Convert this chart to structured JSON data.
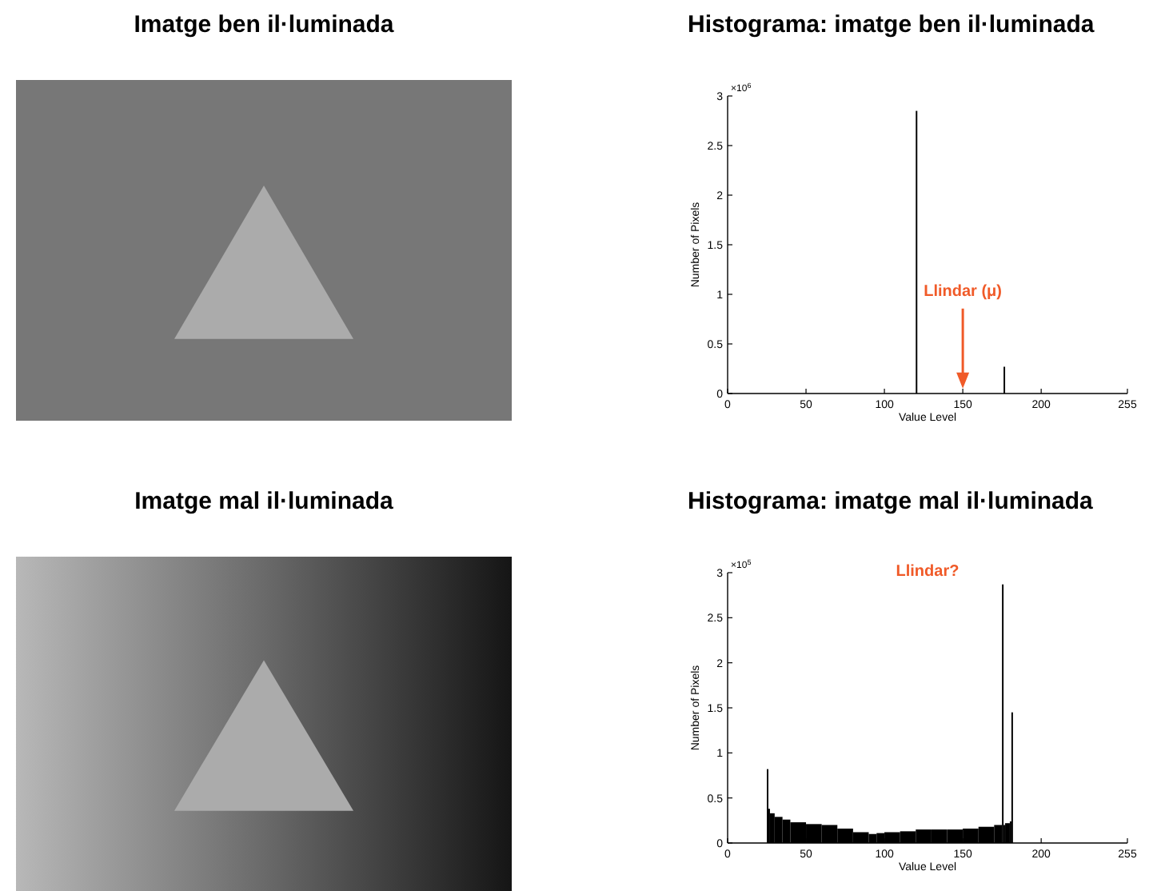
{
  "chart_data": [
    {
      "type": "other",
      "title": "Imatge ben il·luminada"
    },
    {
      "type": "histogram",
      "title": "Histograma: imatge ben il·luminada",
      "xlabel": "Value Level",
      "ylabel": "Number of Pixels",
      "color": "#000000",
      "bins": [
        120,
        121,
        176,
        177
      ],
      "values": [
        2.85,
        0,
        0.27
      ],
      "xlim": [
        0,
        255
      ],
      "xticks": [
        0,
        50,
        100,
        150,
        200,
        255
      ],
      "ylim": [
        0,
        3
      ],
      "yticks": [
        0,
        0.5,
        1,
        1.5,
        2,
        2.5,
        3
      ],
      "annotations": [
        "×10$^{6}$",
        {
          "text": "Llindar (μ)",
          "x": 150,
          "y": 0.05
        }
      ]
    },
    {
      "type": "other",
      "title": "Imatge mal il·luminada"
    },
    {
      "type": "histogram",
      "title": "Histograma: imatge mal il·luminada",
      "xlabel": "Value Level",
      "ylabel": "Number of Pixels",
      "color": "#000000",
      "bins": [
        25,
        26,
        27,
        30,
        35,
        40,
        50,
        60,
        70,
        80,
        90,
        95,
        100,
        110,
        120,
        130,
        140,
        150,
        160,
        170,
        175,
        176,
        177,
        180,
        181,
        182
      ],
      "values": [
        0.82,
        0.38,
        0.33,
        0.29,
        0.26,
        0.23,
        0.21,
        0.2,
        0.16,
        0.12,
        0.1,
        0.11,
        0.12,
        0.13,
        0.15,
        0.15,
        0.15,
        0.16,
        0.18,
        0.2,
        2.87,
        0.2,
        0.22,
        0.24,
        1.45
      ],
      "xlim": [
        0,
        255
      ],
      "xticks": [
        0,
        50,
        100,
        150,
        200,
        255
      ],
      "ylim": [
        0,
        3
      ],
      "yticks": [
        0,
        0.5,
        1,
        1.5,
        2,
        2.5,
        3
      ],
      "annotations": [
        "×10$^{5}$",
        "Llindar?"
      ]
    }
  ]
}
